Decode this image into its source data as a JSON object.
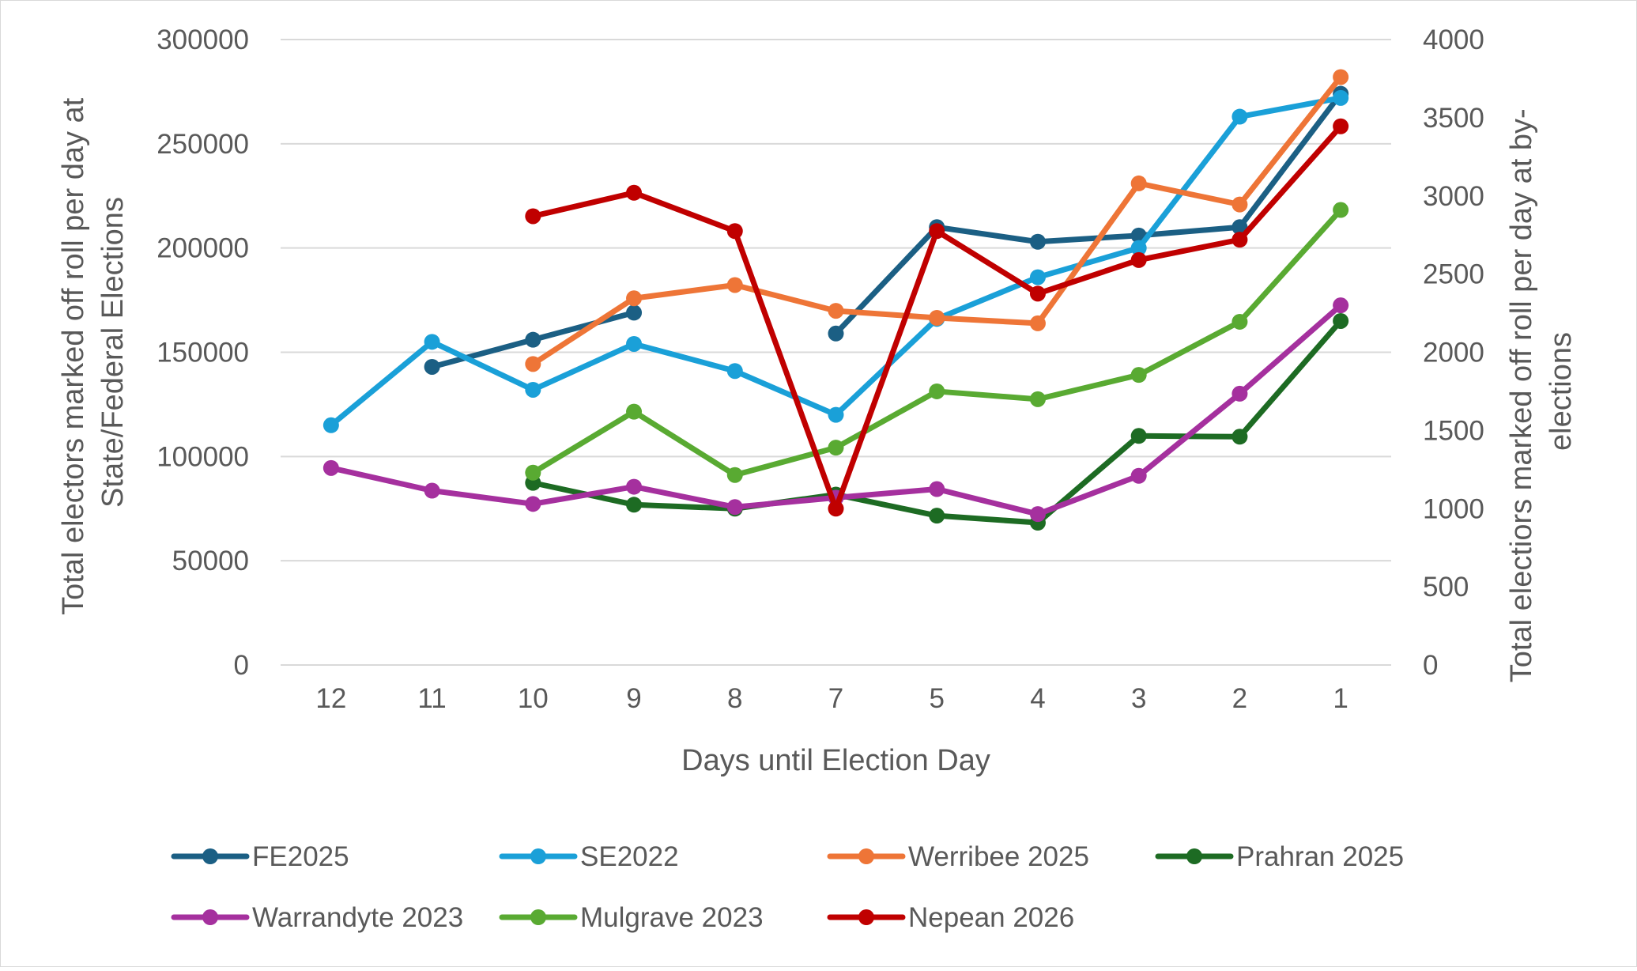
{
  "chart_data": {
    "type": "line",
    "title": "",
    "categories": [
      "12",
      "11",
      "10",
      "9",
      "8",
      "7",
      "5",
      "4",
      "3",
      "2",
      "1"
    ],
    "xlabel": "Days until Election Day",
    "ylabel_left_lines": [
      "Total electors marked off roll per day at",
      "State/Federal Elections"
    ],
    "ylabel_right_lines": [
      "Total electiors marked off roll per day at  by-",
      "elections"
    ],
    "ylim_left": [
      0,
      300000
    ],
    "yticks_left": [
      "0",
      "50000",
      "100000",
      "150000",
      "200000",
      "250000",
      "300000"
    ],
    "ylim_right": [
      0,
      4000
    ],
    "yticks_right": [
      "0",
      "500",
      "1000",
      "1500",
      "2000",
      "2500",
      "3000",
      "3500",
      "4000"
    ],
    "grid": true,
    "legend_position": "bottom",
    "series": [
      {
        "name": "FE2025",
        "axis": "left",
        "color": "#1b5f84",
        "values": [
          null,
          143000,
          156000,
          169000,
          null,
          159000,
          210000,
          203000,
          206000,
          210000,
          274000
        ]
      },
      {
        "name": "SE2022",
        "axis": "left",
        "color": "#1aa0d8",
        "values": [
          115000,
          155000,
          132000,
          154000,
          141000,
          120000,
          166000,
          186000,
          200000,
          263000,
          272000
        ]
      },
      {
        "name": "Werribee 2025",
        "axis": "right",
        "color": "#ee7537",
        "values": [
          null,
          null,
          1925,
          2345,
          2430,
          2265,
          2220,
          2185,
          3080,
          2945,
          3760
        ]
      },
      {
        "name": "Prahran 2025",
        "axis": "right",
        "color": "#1d6b23",
        "values": [
          null,
          null,
          1165,
          1025,
          1000,
          1090,
          955,
          910,
          1465,
          1460,
          2200
        ]
      },
      {
        "name": "Warrandyte 2023",
        "axis": "right",
        "color": "#a5309e",
        "values": [
          1260,
          1115,
          1030,
          1140,
          1010,
          1070,
          1125,
          965,
          1210,
          1735,
          2300
        ]
      },
      {
        "name": "Mulgrave 2023",
        "axis": "right",
        "color": "#59aa32",
        "values": [
          null,
          null,
          1230,
          1620,
          1215,
          1390,
          1750,
          1700,
          1855,
          2195,
          2910
        ]
      },
      {
        "name": "Nepean 2026",
        "axis": "right",
        "color": "#c00000",
        "values": [
          null,
          null,
          2870,
          3020,
          2775,
          1000,
          2775,
          2375,
          2590,
          2720,
          3445
        ]
      }
    ]
  }
}
